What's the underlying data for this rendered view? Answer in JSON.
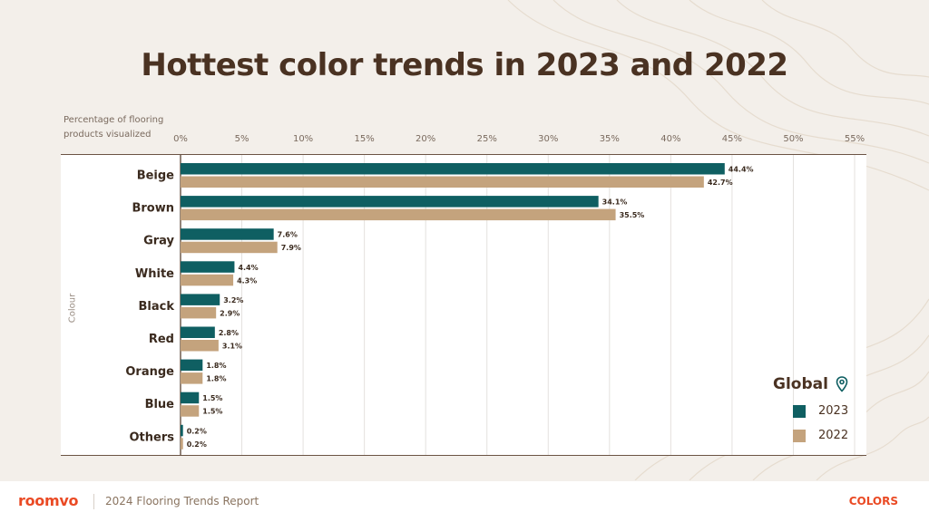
{
  "title": "Hottest color trends in 2023 and 2022",
  "colors": {
    "series_2023": "#0f5f62",
    "series_2022": "#c4a37d",
    "title": "#4a3222",
    "brand": "#ea4a24"
  },
  "legend": {
    "title": "Global",
    "icon": "location-pin-icon"
  },
  "footer": {
    "brand": "roomvo",
    "report": "2024 Flooring Trends Report",
    "section": "COLORS"
  },
  "chart_data": {
    "type": "bar",
    "orientation": "horizontal",
    "title": "Hottest color trends in 2023 and 2022",
    "xlabel": "Percentage of flooring products visualized",
    "ylabel": "Colour",
    "xlim": [
      0,
      55
    ],
    "xticks": [
      "0%",
      "5%",
      "10%",
      "15%",
      "20%",
      "25%",
      "30%",
      "35%",
      "40%",
      "45%",
      "50%",
      "55%"
    ],
    "grid": true,
    "legend_position": "bottom-right",
    "categories": [
      "Beige",
      "Brown",
      "Gray",
      "White",
      "Black",
      "Red",
      "Orange",
      "Blue",
      "Others"
    ],
    "series": [
      {
        "name": "2023",
        "values": [
          44.4,
          34.1,
          7.6,
          4.4,
          3.2,
          2.8,
          1.8,
          1.5,
          0.2
        ],
        "labels": [
          "44.4%",
          "34.1%",
          "7.6%",
          "4.4%",
          "3.2%",
          "2.8%",
          "1.8%",
          "1.5%",
          "0.2%"
        ]
      },
      {
        "name": "2022",
        "values": [
          42.7,
          35.5,
          7.9,
          4.3,
          2.9,
          3.1,
          1.8,
          1.5,
          0.2
        ],
        "labels": [
          "42.7%",
          "35.5%",
          "7.9%",
          "4.3%",
          "2.9%",
          "3.1%",
          "1.8%",
          "1.5%",
          "0.2%"
        ]
      }
    ]
  }
}
